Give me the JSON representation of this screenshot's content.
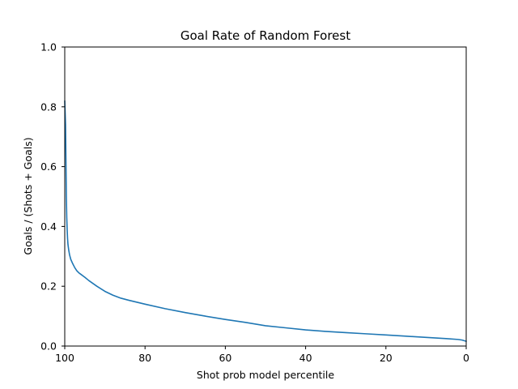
{
  "chart_data": {
    "type": "line",
    "title": "Goal Rate of Random Forest",
    "xlabel": "Shot prob model percentile",
    "ylabel": "Goals / (Shots + Goals)",
    "xlim": [
      100,
      0
    ],
    "ylim": [
      0.0,
      1.0
    ],
    "x_inverted": true,
    "grid": false,
    "xticks": [
      100,
      80,
      60,
      40,
      20,
      0
    ],
    "xtick_labels": [
      "100",
      "80",
      "60",
      "40",
      "20",
      "0"
    ],
    "yticks": [
      0.0,
      0.2,
      0.4,
      0.6,
      0.8,
      1.0
    ],
    "ytick_labels": [
      "0.0",
      "0.2",
      "0.4",
      "0.6",
      "0.8",
      "1.0"
    ],
    "series": [
      {
        "color": "#1f77b4",
        "x": [
          100,
          99.9,
          99.8,
          99.7,
          99.6,
          99.5,
          99.4,
          99.3,
          99.2,
          99.0,
          98.8,
          98.5,
          98.0,
          97.5,
          97.0,
          96.5,
          96.0,
          95.0,
          94.0,
          92.0,
          90.0,
          88.0,
          86.0,
          84.0,
          80.0,
          75.0,
          70.0,
          65.0,
          60.0,
          55.0,
          50.0,
          45.0,
          40.0,
          35.0,
          30.0,
          25.0,
          20.0,
          15.0,
          10.0,
          5.0,
          2.0,
          1.0,
          0.5,
          0.0
        ],
        "y": [
          0.82,
          0.78,
          0.74,
          0.62,
          0.5,
          0.43,
          0.39,
          0.36,
          0.34,
          0.32,
          0.305,
          0.29,
          0.275,
          0.262,
          0.252,
          0.245,
          0.24,
          0.23,
          0.219,
          0.2,
          0.183,
          0.17,
          0.16,
          0.153,
          0.14,
          0.125,
          0.112,
          0.1,
          0.089,
          0.079,
          0.068,
          0.061,
          0.054,
          0.049,
          0.045,
          0.041,
          0.037,
          0.033,
          0.029,
          0.025,
          0.022,
          0.02,
          0.018,
          0.016
        ]
      }
    ]
  }
}
